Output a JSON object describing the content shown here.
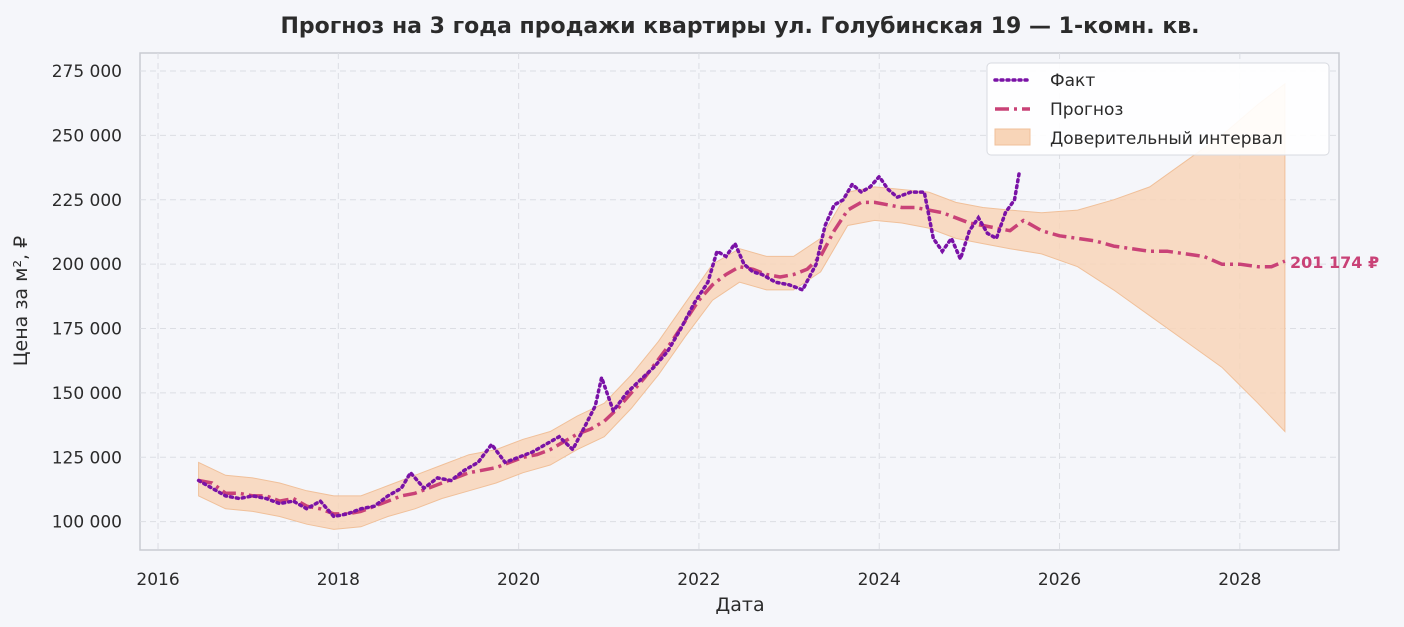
{
  "chart_data": {
    "type": "line",
    "title": "Прогноз на 3 года продажи квартиры  ул. Голубинская 19 — 1-комн. кв.",
    "xlabel": "Дата",
    "ylabel": "Цена за м², ₽",
    "xlim": [
      2015.8,
      2029.1
    ],
    "ylim": [
      89000,
      282000
    ],
    "x_ticks": [
      2016,
      2018,
      2020,
      2022,
      2024,
      2026,
      2028
    ],
    "x_tick_labels": [
      "2016",
      "2018",
      "2020",
      "2022",
      "2024",
      "2026",
      "2028"
    ],
    "y_ticks": [
      100000,
      125000,
      150000,
      175000,
      200000,
      225000,
      250000,
      275000
    ],
    "y_tick_labels": [
      "100 000",
      "125 000",
      "150 000",
      "175 000",
      "200 000",
      "225 000",
      "250 000",
      "275 000"
    ],
    "grid": true,
    "legend_position": "top-right",
    "end_label": "201 174 ₽",
    "colors": {
      "fact": "#7a12a6",
      "forecast": "#c94277",
      "band": "#f8d5b8",
      "band_edge": "#f0c09a"
    },
    "series": [
      {
        "name": "Факт",
        "style": "dotted",
        "x": [
          2016.45,
          2016.6,
          2016.75,
          2016.9,
          2017.05,
          2017.2,
          2017.35,
          2017.5,
          2017.65,
          2017.8,
          2017.95,
          2018.1,
          2018.25,
          2018.4,
          2018.55,
          2018.7,
          2018.8,
          2018.95,
          2019.1,
          2019.25,
          2019.4,
          2019.55,
          2019.7,
          2019.85,
          2020.0,
          2020.15,
          2020.3,
          2020.45,
          2020.6,
          2020.75,
          2020.85,
          2020.92,
          2021.05,
          2021.2,
          2021.35,
          2021.5,
          2021.65,
          2021.8,
          2021.95,
          2022.1,
          2022.2,
          2022.3,
          2022.4,
          2022.5,
          2022.6,
          2022.7,
          2022.85,
          2023.0,
          2023.15,
          2023.3,
          2023.4,
          2023.5,
          2023.6,
          2023.7,
          2023.8,
          2023.9,
          2024.0,
          2024.1,
          2024.2,
          2024.35,
          2024.5,
          2024.6,
          2024.7,
          2024.8,
          2024.9,
          2025.0,
          2025.1,
          2025.2,
          2025.3,
          2025.4,
          2025.5,
          2025.55
        ],
        "y": [
          116000,
          113000,
          110000,
          109000,
          110000,
          109000,
          107000,
          108000,
          105000,
          108000,
          102000,
          103000,
          105000,
          106000,
          110000,
          113000,
          119000,
          113000,
          117000,
          116000,
          120000,
          123000,
          130000,
          123000,
          125000,
          127000,
          130000,
          133000,
          128000,
          138000,
          145000,
          156000,
          143000,
          150000,
          155000,
          160000,
          166000,
          175000,
          185000,
          193000,
          205000,
          203000,
          208000,
          200000,
          197000,
          196000,
          193000,
          192000,
          190000,
          200000,
          215000,
          223000,
          225000,
          231000,
          228000,
          230000,
          234000,
          229000,
          226000,
          228000,
          228000,
          210000,
          205000,
          210000,
          202000,
          213000,
          218000,
          212000,
          210000,
          220000,
          225000,
          235000
        ]
      },
      {
        "name": "Прогноз",
        "style": "dashdot",
        "x": [
          2016.45,
          2016.6,
          2016.75,
          2016.9,
          2017.05,
          2017.2,
          2017.35,
          2017.5,
          2017.65,
          2017.8,
          2017.95,
          2018.1,
          2018.25,
          2018.4,
          2018.55,
          2018.7,
          2018.85,
          2019.0,
          2019.15,
          2019.3,
          2019.45,
          2019.6,
          2019.75,
          2019.9,
          2020.05,
          2020.2,
          2020.35,
          2020.5,
          2020.65,
          2020.8,
          2020.95,
          2021.1,
          2021.25,
          2021.4,
          2021.55,
          2021.7,
          2021.85,
          2022.0,
          2022.15,
          2022.3,
          2022.45,
          2022.6,
          2022.75,
          2022.9,
          2023.05,
          2023.2,
          2023.35,
          2023.5,
          2023.65,
          2023.8,
          2023.95,
          2024.1,
          2024.25,
          2024.4,
          2024.55,
          2024.7,
          2024.85,
          2025.0,
          2025.15,
          2025.3,
          2025.45,
          2025.6,
          2025.8,
          2026.0,
          2026.2,
          2026.4,
          2026.6,
          2026.8,
          2027.0,
          2027.2,
          2027.4,
          2027.6,
          2027.8,
          2028.0,
          2028.2,
          2028.35,
          2028.5
        ],
        "y": [
          116000,
          115000,
          111000,
          111000,
          110000,
          110000,
          108000,
          109000,
          106000,
          105000,
          103000,
          103000,
          104000,
          106000,
          108000,
          110000,
          111000,
          113000,
          115000,
          117000,
          119000,
          120000,
          121000,
          123000,
          125000,
          126000,
          128000,
          131000,
          134000,
          136000,
          139000,
          144000,
          150000,
          156000,
          163000,
          170000,
          178000,
          186000,
          192000,
          196000,
          199000,
          198000,
          196000,
          195000,
          196000,
          198000,
          203000,
          213000,
          221000,
          224000,
          224000,
          223000,
          222000,
          222000,
          221000,
          220000,
          218000,
          216000,
          215000,
          214000,
          213000,
          217000,
          213000,
          211000,
          210000,
          209000,
          207000,
          206000,
          205000,
          205000,
          204000,
          203000,
          200000,
          200000,
          199000,
          199000,
          201174
        ]
      }
    ],
    "band": {
      "name": "Доверительный интервал",
      "x": [
        2016.45,
        2016.75,
        2017.05,
        2017.35,
        2017.65,
        2017.95,
        2018.25,
        2018.55,
        2018.85,
        2019.15,
        2019.45,
        2019.75,
        2020.05,
        2020.35,
        2020.65,
        2020.95,
        2021.25,
        2021.55,
        2021.85,
        2022.15,
        2022.45,
        2022.75,
        2023.05,
        2023.35,
        2023.65,
        2023.95,
        2024.25,
        2024.55,
        2024.85,
        2025.15,
        2025.45,
        2025.8,
        2026.2,
        2026.6,
        2027.0,
        2027.4,
        2027.8,
        2028.2,
        2028.5
      ],
      "lower": [
        110000,
        105000,
        104000,
        102000,
        99000,
        97000,
        98000,
        102000,
        105000,
        109000,
        112000,
        115000,
        119000,
        122000,
        128000,
        133000,
        144000,
        157000,
        172000,
        186000,
        193000,
        190000,
        190000,
        197000,
        215000,
        217000,
        216000,
        214000,
        210000,
        208000,
        206000,
        204000,
        199000,
        190000,
        180000,
        170000,
        160000,
        146000,
        135000
      ],
      "upper": [
        123000,
        118000,
        117000,
        115000,
        112000,
        110000,
        110000,
        114000,
        118000,
        122000,
        126000,
        128000,
        132000,
        135000,
        141000,
        146000,
        157000,
        170000,
        185000,
        200000,
        206000,
        203000,
        203000,
        210000,
        228000,
        230000,
        229000,
        228000,
        224000,
        222000,
        221000,
        220000,
        221000,
        225000,
        230000,
        240000,
        250000,
        262000,
        270000
      ]
    }
  }
}
